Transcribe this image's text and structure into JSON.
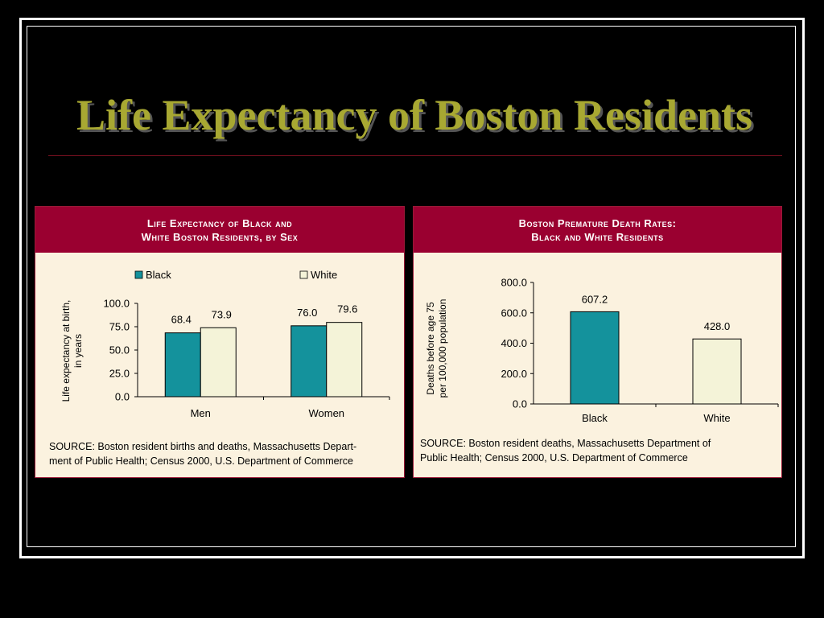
{
  "slide": {
    "title": "Life Expectancy of Boston Residents"
  },
  "colors": {
    "black_series": "#14929c",
    "white_series": "#f4f3d8",
    "header_bg": "#9a0030",
    "panel_bg": "#fbf2df",
    "title": "#a8a832"
  },
  "chart_data": [
    {
      "type": "bar",
      "title_line1": "Life Expectancy of Black and",
      "title_line2": "White Boston Residents, by Sex",
      "categories": [
        "Men",
        "Women"
      ],
      "series": [
        {
          "name": "Black",
          "values": [
            68.4,
            76.0
          ]
        },
        {
          "name": "White",
          "values": [
            73.9,
            79.6
          ]
        }
      ],
      "data_labels": [
        [
          "68.4",
          "76.0"
        ],
        [
          "73.9",
          "79.6"
        ]
      ],
      "ylabel_line1": "Life expectancy at birth,",
      "ylabel_line2": "in years",
      "ylim": [
        0,
        100
      ],
      "yticks": [
        "0.0",
        "25.0",
        "50.0",
        "75.0",
        "100.0"
      ],
      "ytick_values": [
        0,
        25,
        50,
        75,
        100
      ],
      "legend": "top",
      "grid": false,
      "source_line1": "SOURCE:  Boston resident births and deaths, Massachusetts Depart-",
      "source_line2": "ment of Public Health; Census 2000, U.S. Department of Commerce"
    },
    {
      "type": "bar",
      "title_line1": "Boston Premature Death Rates:",
      "title_line2": "Black and White Residents",
      "categories": [
        "Black",
        "White"
      ],
      "values": [
        607.2,
        428.0
      ],
      "data_labels": [
        "607.2",
        "428.0"
      ],
      "ylabel_line1": "Deaths before age 75",
      "ylabel_line2": "per 100,000 population",
      "ylim": [
        0,
        800
      ],
      "yticks": [
        "0.0",
        "200.0",
        "400.0",
        "600.0",
        "800.0"
      ],
      "ytick_values": [
        0,
        200,
        400,
        600,
        800
      ],
      "grid": false,
      "source_line1": "SOURCE:  Boston resident deaths, Massachusetts Department of",
      "source_line2": "Public Health; Census 2000, U.S. Department of Commerce"
    }
  ]
}
